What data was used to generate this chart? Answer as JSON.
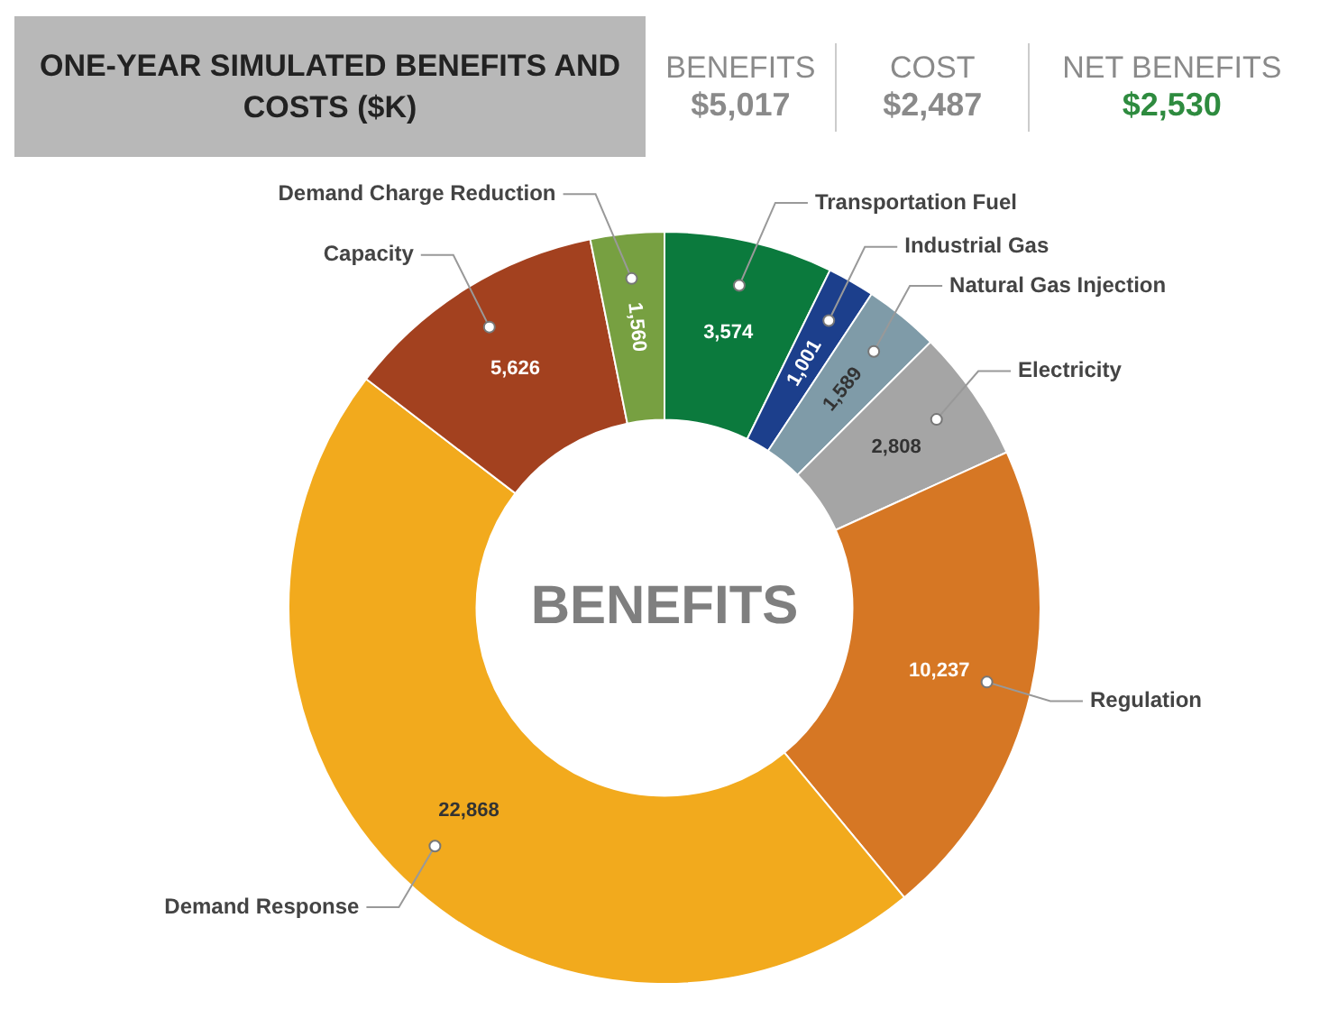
{
  "chart_data": {
    "type": "donut",
    "title": "ONE-YEAR SIMULATED BENEFITS AND COSTS ($K)",
    "categories": [
      "Transportation Fuel",
      "Industrial Gas",
      "Natural Gas Injection",
      "Electricity",
      "Regulation",
      "Demand Response",
      "Capacity",
      "Demand Charge Reduction"
    ],
    "values": [
      3574,
      1001,
      1589,
      2808,
      10237,
      22868,
      5626,
      1560
    ],
    "colors": [
      "#0b7a3d",
      "#1c3f8c",
      "#7f9ba8",
      "#a5a5a5",
      "#d67724",
      "#f2aa1d",
      "#a3411f",
      "#77a041"
    ],
    "value_labels": [
      "3,574",
      "1,001",
      "1,589",
      "2,808",
      "10,237",
      "22,868",
      "5,626",
      "1,560"
    ],
    "annotations": [
      "BENEFITS",
      "BENEFITS",
      "$5,017",
      "COST",
      "$2,487",
      "NET BENEFITS",
      "$2,530"
    ]
  }
}
